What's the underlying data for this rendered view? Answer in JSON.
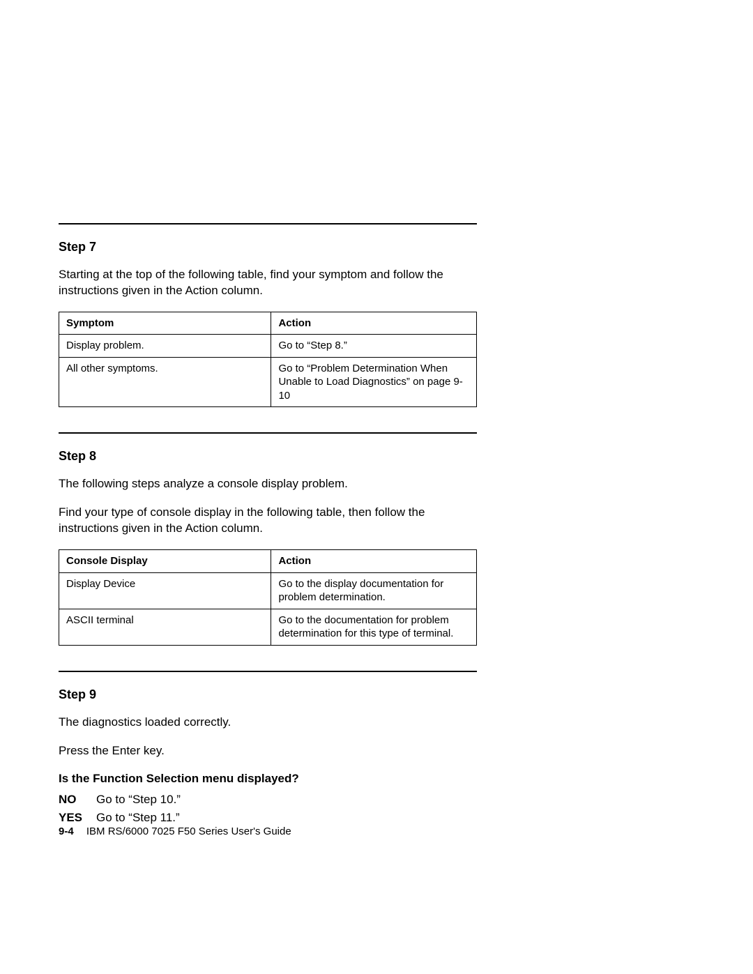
{
  "step7": {
    "heading": "Step 7",
    "para": "Starting at the top of the following table, find your symptom and follow the instructions given in the Action column.",
    "headers": {
      "c1": "Symptom",
      "c2": "Action"
    },
    "rows": [
      {
        "c1": "Display problem.",
        "c2": "Go to “Step 8.”"
      },
      {
        "c1": "All other symptoms.",
        "c2": "Go to “Problem Determination When Unable to Load Diagnostics” on page 9-10"
      }
    ]
  },
  "step8": {
    "heading": "Step 8",
    "para1": "The following steps analyze a console display problem.",
    "para2": "Find your type of console display in the following table, then follow the instructions given in the Action column.",
    "headers": {
      "c1": "Console Display",
      "c2": "Action"
    },
    "rows": [
      {
        "c1": "Display Device",
        "c2": "Go to the display documentation for problem determination."
      },
      {
        "c1": "ASCII terminal",
        "c2": "Go to the documentation for problem determination for this type of terminal."
      }
    ]
  },
  "step9": {
    "heading": "Step 9",
    "para1": "The diagnostics loaded correctly.",
    "para2": "Press the Enter key.",
    "question": "Is the Function Selection menu displayed?",
    "answers": [
      {
        "key": "NO",
        "text": "Go to “Step 10.”"
      },
      {
        "key": "YES",
        "text": "Go to “Step 11.”"
      }
    ]
  },
  "footer": {
    "pagenum": "9-4",
    "title": "IBM RS/6000 7025 F50 Series User's Guide"
  }
}
